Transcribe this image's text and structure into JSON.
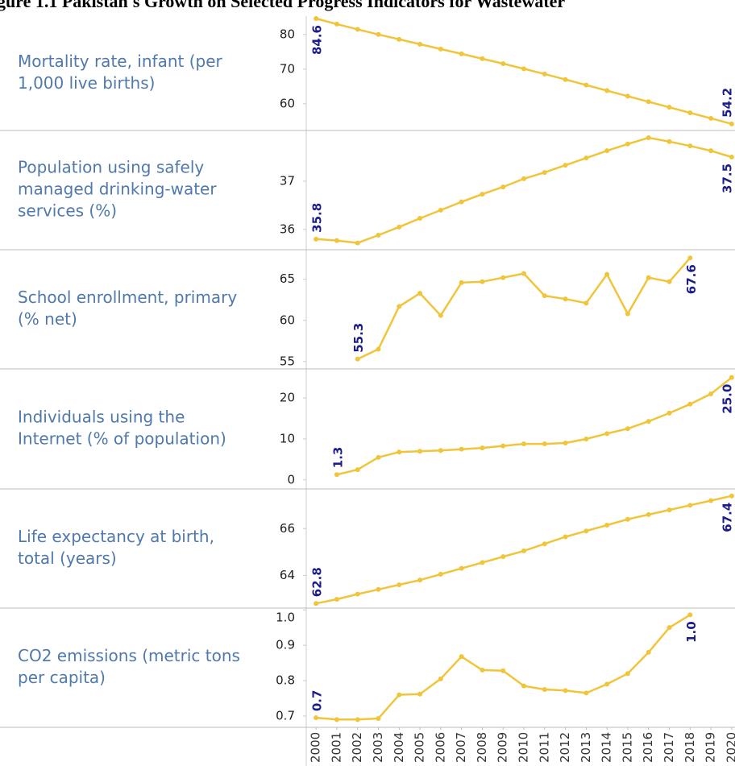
{
  "figure_title": "gure 1.1 Pakistan's Growth on Selected Progress Indicators for Wastewater",
  "chart_data": [
    {
      "type": "line",
      "title": [
        "Mortality rate, infant (per",
        "1,000 live births)"
      ],
      "x": [
        2000,
        2001,
        2002,
        2003,
        2004,
        2005,
        2006,
        2007,
        2008,
        2009,
        2010,
        2011,
        2012,
        2013,
        2014,
        2015,
        2016,
        2017,
        2018,
        2019,
        2020
      ],
      "xlim": [
        1999.53,
        2020.16
      ],
      "ylim": [
        52.3,
        85.3
      ],
      "yticks": [
        60,
        70,
        80
      ],
      "series": [
        {
          "color": "#f0c53a",
          "values": [
            84.6,
            83.0,
            81.5,
            80.0,
            78.6,
            77.2,
            75.8,
            74.4,
            73.0,
            71.6,
            70.1,
            68.6,
            67.0,
            65.4,
            63.8,
            62.2,
            60.6,
            59.0,
            57.4,
            55.8,
            54.2
          ],
          "value_labels": [
            "84.6",
            null,
            null,
            null,
            null,
            null,
            null,
            null,
            null,
            null,
            null,
            null,
            null,
            null,
            null,
            null,
            null,
            null,
            null,
            null,
            "54.2"
          ]
        }
      ]
    },
    {
      "type": "line",
      "title": [
        "Population using safely",
        "managed drinking-water",
        "services (%)"
      ],
      "x": [
        2000,
        2001,
        2002,
        2003,
        2004,
        2005,
        2006,
        2007,
        2008,
        2009,
        2010,
        2011,
        2012,
        2013,
        2014,
        2015,
        2016,
        2017,
        2018,
        2019,
        2020
      ],
      "xlim": [
        1999.53,
        2020.16
      ],
      "ylim": [
        35.58,
        38.05
      ],
      "yticks": [
        36,
        37
      ],
      "series": [
        {
          "color": "#f0c53a",
          "values": [
            35.8,
            35.77,
            35.72,
            35.88,
            36.05,
            36.23,
            36.4,
            36.57,
            36.73,
            36.88,
            37.05,
            37.18,
            37.33,
            37.48,
            37.63,
            37.77,
            37.9,
            37.82,
            37.73,
            37.63,
            37.5
          ],
          "value_labels": [
            "35.8",
            null,
            null,
            null,
            null,
            null,
            null,
            null,
            null,
            null,
            null,
            null,
            null,
            null,
            null,
            null,
            null,
            null,
            null,
            null,
            "37.5"
          ]
        }
      ]
    },
    {
      "type": "line",
      "title": [
        "School enrollment, primary",
        "(% net)"
      ],
      "x": [
        2000,
        2001,
        2002,
        2003,
        2004,
        2005,
        2006,
        2007,
        2008,
        2009,
        2010,
        2011,
        2012,
        2013,
        2014,
        2015,
        2016,
        2017,
        2018,
        2019,
        2020
      ],
      "xlim": [
        1999.53,
        2020.16
      ],
      "ylim": [
        54.1,
        68.6
      ],
      "yticks": [
        55,
        60,
        65
      ],
      "series": [
        {
          "color": "#f0c53a",
          "values": [
            null,
            null,
            55.3,
            56.5,
            61.7,
            63.3,
            60.6,
            64.6,
            64.7,
            65.2,
            65.7,
            63.0,
            62.6,
            62.1,
            65.6,
            60.8,
            65.2,
            64.7,
            67.6,
            null,
            null
          ],
          "value_labels": [
            null,
            null,
            "55.3",
            null,
            null,
            null,
            null,
            null,
            null,
            null,
            null,
            null,
            null,
            null,
            null,
            null,
            null,
            null,
            "67.6",
            null,
            null
          ]
        }
      ]
    },
    {
      "type": "line",
      "title": [
        "Individuals using the",
        "Internet (% of population)"
      ],
      "x": [
        2000,
        2001,
        2002,
        2003,
        2004,
        2005,
        2006,
        2007,
        2008,
        2009,
        2010,
        2011,
        2012,
        2013,
        2014,
        2015,
        2016,
        2017,
        2018,
        2019,
        2020
      ],
      "xlim": [
        1999.53,
        2020.16
      ],
      "ylim": [
        -2.2,
        27.1
      ],
      "yticks": [
        0,
        10,
        20
      ],
      "series": [
        {
          "color": "#f0c53a",
          "values": [
            null,
            1.3,
            2.5,
            5.5,
            6.8,
            7.0,
            7.2,
            7.5,
            7.8,
            8.3,
            8.8,
            8.8,
            9.0,
            10.0,
            11.3,
            12.5,
            14.3,
            16.3,
            18.5,
            21.0,
            25
          ],
          "value_labels": [
            null,
            "1.3",
            null,
            null,
            null,
            null,
            null,
            null,
            null,
            null,
            null,
            null,
            null,
            null,
            null,
            null,
            null,
            null,
            null,
            null,
            "25.0"
          ]
        }
      ]
    },
    {
      "type": "line",
      "title": [
        "Life expectancy at birth,",
        "total (years)"
      ],
      "x": [
        2000,
        2001,
        2002,
        2003,
        2004,
        2005,
        2006,
        2007,
        2008,
        2009,
        2010,
        2011,
        2012,
        2013,
        2014,
        2015,
        2016,
        2017,
        2018,
        2019,
        2020
      ],
      "xlim": [
        1999.53,
        2020.16
      ],
      "ylim": [
        62.6,
        67.7
      ],
      "yticks": [
        64,
        66
      ],
      "series": [
        {
          "color": "#f0c53a",
          "values": [
            62.8,
            62.98,
            63.2,
            63.4,
            63.6,
            63.8,
            64.05,
            64.3,
            64.55,
            64.8,
            65.05,
            65.35,
            65.65,
            65.9,
            66.15,
            66.4,
            66.6,
            66.8,
            67.0,
            67.2,
            67.4
          ],
          "value_labels": [
            "62.8",
            null,
            null,
            null,
            null,
            null,
            null,
            null,
            null,
            null,
            null,
            null,
            null,
            null,
            null,
            null,
            null,
            null,
            null,
            null,
            "67.4"
          ]
        }
      ]
    },
    {
      "type": "line",
      "title": [
        "CO2 emissions (metric tons",
        "per capita)"
      ],
      "x": [
        2000,
        2001,
        2002,
        2003,
        2004,
        2005,
        2006,
        2007,
        2008,
        2009,
        2010,
        2011,
        2012,
        2013,
        2014,
        2015,
        2016,
        2017,
        2018,
        2019,
        2020
      ],
      "xlim": [
        1999.53,
        2020.16
      ],
      "ylim": [
        0.668,
        1.005
      ],
      "yticks": [
        0.7,
        0.8,
        0.9,
        {
          "value": 1,
          "label": "1.0"
        }
      ],
      "xticks": [
        2000,
        2001,
        2002,
        2003,
        2004,
        2005,
        2006,
        2007,
        2008,
        2009,
        2010,
        2011,
        2012,
        2013,
        2014,
        2015,
        2016,
        2017,
        2018,
        2019,
        2020
      ],
      "series": [
        {
          "color": "#f0c53a",
          "values": [
            0.695,
            0.69,
            0.69,
            0.693,
            0.76,
            0.762,
            0.805,
            0.868,
            0.83,
            0.828,
            0.785,
            0.775,
            0.772,
            0.765,
            0.79,
            0.82,
            0.88,
            0.95,
            0.986,
            null,
            null
          ],
          "value_labels": [
            "0.7",
            null,
            null,
            null,
            null,
            null,
            null,
            null,
            null,
            null,
            null,
            null,
            null,
            null,
            null,
            null,
            null,
            null,
            "1.0",
            null,
            null
          ]
        }
      ]
    }
  ]
}
